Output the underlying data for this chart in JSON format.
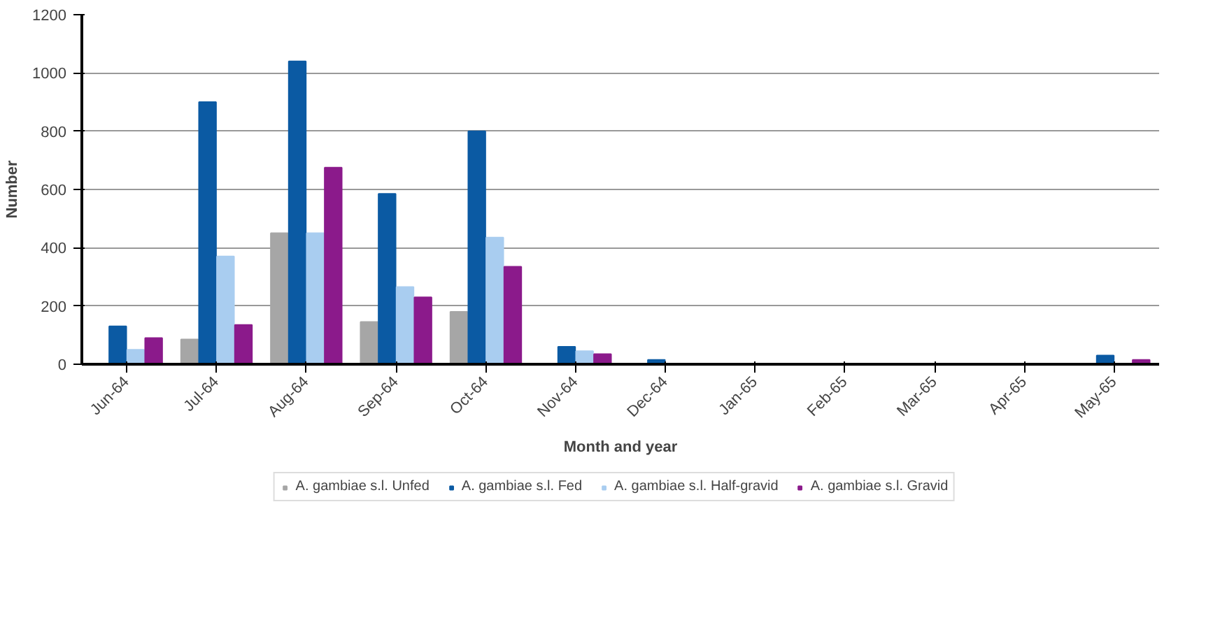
{
  "chart_data": {
    "type": "bar",
    "xlabel": "Month and year",
    "ylabel": "Number",
    "categories": [
      "Jun-64",
      "Jul-64",
      "Aug-64",
      "Sep-64",
      "Oct-64",
      "Nov-64",
      "Dec-64",
      "Jan-65",
      "Feb-65",
      "Mar-65",
      "Apr-65",
      "May-65"
    ],
    "series": [
      {
        "name": "A. gambiae s.l. Unfed",
        "color": "#a6a6a6",
        "values": [
          0,
          85,
          450,
          145,
          180,
          0,
          0,
          0,
          0,
          0,
          0,
          0
        ]
      },
      {
        "name": "A. gambiae s.l. Fed",
        "color": "#0b5aa3",
        "values": [
          130,
          900,
          1040,
          585,
          800,
          60,
          15,
          0,
          0,
          0,
          0,
          30
        ]
      },
      {
        "name": "A. gambiae s.l. Half-gravid",
        "color": "#a9cdf0",
        "values": [
          50,
          370,
          450,
          265,
          435,
          45,
          0,
          0,
          0,
          0,
          0,
          0
        ]
      },
      {
        "name": "A. gambiae s.l. Gravid",
        "color": "#8b1a8b",
        "values": [
          90,
          135,
          675,
          230,
          335,
          35,
          0,
          0,
          0,
          0,
          0,
          15
        ]
      }
    ],
    "ylim": [
      0,
      1200
    ],
    "yticks": [
      0,
      200,
      400,
      600,
      800,
      1000,
      1200
    ],
    "grid": "y",
    "legend": "bottom"
  }
}
